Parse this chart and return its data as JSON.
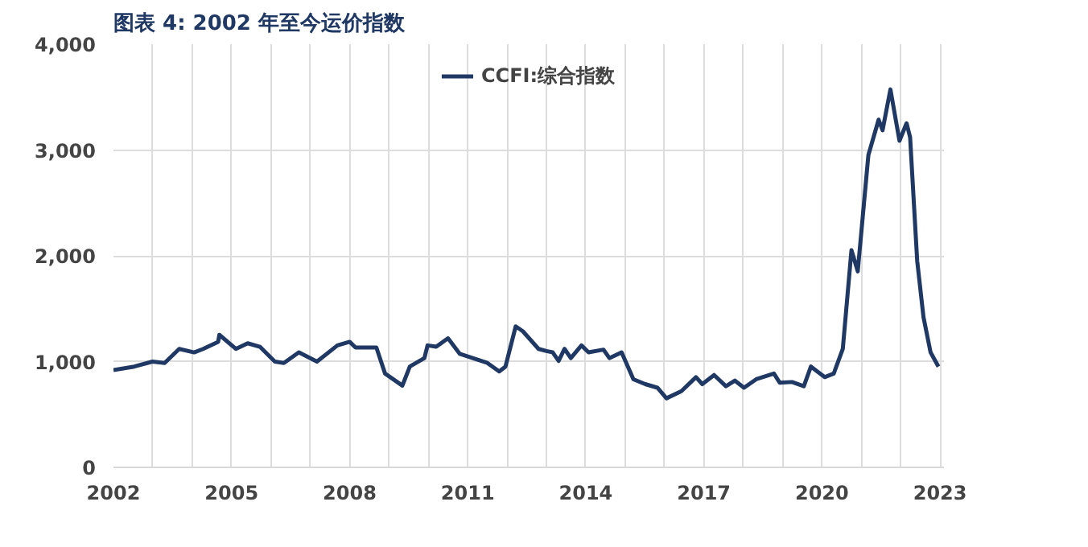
{
  "chart_data": {
    "type": "line",
    "title": "图表 4:  2002 年至今运价指数",
    "xlim": [
      2002,
      2023.1
    ],
    "xticks": [
      2002,
      {
        "value": 2003,
        "label": null
      },
      {
        "value": 2004,
        "label": null
      },
      2005,
      {
        "value": 2006,
        "label": null
      },
      {
        "value": 2007,
        "label": null
      },
      2008,
      {
        "value": 2009,
        "label": null
      },
      {
        "value": 2010,
        "label": null
      },
      2011,
      {
        "value": 2012,
        "label": null
      },
      {
        "value": 2013,
        "label": null
      },
      2014,
      {
        "value": 2015,
        "label": null
      },
      {
        "value": 2016,
        "label": null
      },
      2017,
      {
        "value": 2018,
        "label": null
      },
      {
        "value": 2019,
        "label": null
      },
      2020,
      {
        "value": 2021,
        "label": null
      },
      {
        "value": 2022,
        "label": null
      },
      2023
    ],
    "ylim": [
      0,
      4000
    ],
    "yticks": [
      0,
      {
        "value": 1000,
        "label": "1,000"
      },
      {
        "value": 2000,
        "label": "2,000"
      },
      {
        "value": 3000,
        "label": "3,000"
      },
      {
        "value": 4000,
        "label": "4,000"
      }
    ],
    "grid": true,
    "legend": "top",
    "marker": "none",
    "line_style": "solid",
    "x": [
      2002.0,
      2002.53,
      2002.99,
      2003.3,
      2003.67,
      2004.05,
      2004.28,
      2004.66,
      2004.69,
      2005.11,
      2005.41,
      2005.72,
      2006.1,
      2006.33,
      2006.71,
      2007.17,
      2007.69,
      2008.0,
      2008.15,
      2008.68,
      2008.9,
      2009.34,
      2009.53,
      2009.9,
      2009.98,
      2010.2,
      2010.5,
      2010.8,
      2011.5,
      2011.8,
      2011.96,
      2012.22,
      2012.4,
      2012.8,
      2013.0,
      2013.16,
      2013.31,
      2013.46,
      2013.62,
      2013.89,
      2014.07,
      2014.45,
      2014.6,
      2014.91,
      2015.21,
      2015.51,
      2015.82,
      2016.05,
      2016.43,
      2016.8,
      2016.96,
      2017.26,
      2017.56,
      2017.79,
      2018.02,
      2018.33,
      2018.78,
      2018.93,
      2019.24,
      2019.54,
      2019.72,
      2020.07,
      2020.3,
      2020.53,
      2020.75,
      2020.91,
      2021.18,
      2021.44,
      2021.54,
      2021.74,
      2021.97,
      2022.15,
      2022.24,
      2022.42,
      2022.58,
      2022.76,
      2022.96
    ],
    "series": [
      {
        "name": "CCFI:综合指数",
        "color": "#1f3864",
        "values": [
          920,
          953,
          1000,
          987,
          1120,
          1087,
          1120,
          1187,
          1253,
          1120,
          1173,
          1140,
          1000,
          987,
          1087,
          1000,
          1153,
          1187,
          1133,
          1133,
          887,
          773,
          953,
          1033,
          1153,
          1140,
          1220,
          1073,
          987,
          907,
          953,
          1333,
          1287,
          1120,
          1100,
          1087,
          1007,
          1120,
          1033,
          1153,
          1087,
          1113,
          1033,
          1087,
          833,
          787,
          753,
          653,
          720,
          853,
          787,
          873,
          767,
          820,
          753,
          833,
          887,
          800,
          807,
          767,
          953,
          853,
          887,
          1120,
          2053,
          1853,
          2953,
          3287,
          3187,
          3573,
          3087,
          3253,
          3120,
          1953,
          1420,
          1087,
          953
        ]
      }
    ]
  }
}
